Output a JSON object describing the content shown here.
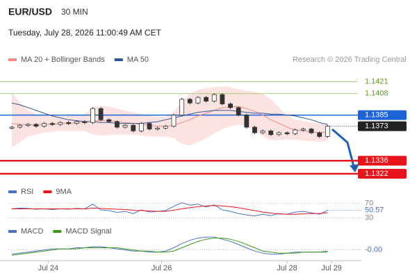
{
  "header": {
    "symbol": "EUR/USD",
    "interval": "30 MIN",
    "timestamp": "Tuesday, July 28, 2026 11:00:49 AM CET",
    "credit": "Research © 2026 Trading Central"
  },
  "chart_data": [
    {
      "type": "candlestick",
      "up_color": "#ffffff",
      "down_color": "#333333",
      "ylim": [
        1.1313,
        1.1428
      ],
      "close": [
        1.1372,
        1.1374,
        1.1375,
        1.1373,
        1.1376,
        1.1375,
        1.1377,
        1.1376,
        1.1378,
        1.1377,
        1.1392,
        1.138,
        1.1378,
        1.1372,
        1.1374,
        1.1368,
        1.1376,
        1.137,
        1.1371,
        1.1373,
        1.1385,
        1.1402,
        1.1398,
        1.1404,
        1.14,
        1.1407,
        1.1397,
        1.1393,
        1.1385,
        1.1372,
        1.1366,
        1.1368,
        1.1364,
        1.1366,
        1.1365,
        1.1369,
        1.137,
        1.1366,
        1.1362,
        1.1373
      ],
      "series": [
        {
          "name": "MA 20 + Bollinger Bands",
          "color": "#f28b82",
          "band_color": "#fde2e2",
          "values": [
            1.1376,
            1.1375,
            1.1375,
            1.1374,
            1.1375,
            1.1375,
            1.1376,
            1.1376,
            1.1377,
            1.1377,
            1.1379,
            1.1379,
            1.1379,
            1.1378,
            1.1377,
            1.1376,
            1.1375,
            1.1374,
            1.1373,
            1.1373,
            1.1374,
            1.1377,
            1.138,
            1.1384,
            1.1387,
            1.139,
            1.1393,
            1.1394,
            1.1394,
            1.1392,
            1.1389,
            1.1385,
            1.138,
            1.1376,
            1.1372,
            1.1369,
            1.1368,
            1.1367,
            1.1366,
            1.1367
          ],
          "upper": [
            1.141,
            1.1398,
            1.139,
            1.1386,
            1.1385,
            1.1384,
            1.1384,
            1.1384,
            1.1385,
            1.1386,
            1.1394,
            1.1395,
            1.1394,
            1.1392,
            1.139,
            1.1388,
            1.1386,
            1.1384,
            1.1383,
            1.1383,
            1.1388,
            1.14,
            1.1408,
            1.1412,
            1.1414,
            1.1415,
            1.1416,
            1.1415,
            1.1413,
            1.1411,
            1.141,
            1.1408,
            1.1402,
            1.1393,
            1.1385,
            1.138,
            1.1378,
            1.1377,
            1.1376,
            1.1376
          ],
          "lower": [
            1.135,
            1.1356,
            1.1362,
            1.1364,
            1.1366,
            1.1367,
            1.1368,
            1.1368,
            1.1368,
            1.1368,
            1.1364,
            1.1363,
            1.1364,
            1.1364,
            1.1364,
            1.1364,
            1.1363,
            1.1362,
            1.1362,
            1.1362,
            1.136,
            1.1354,
            1.1352,
            1.1356,
            1.136,
            1.1365,
            1.137,
            1.1373,
            1.1375,
            1.1373,
            1.1368,
            1.1362,
            1.1358,
            1.1358,
            1.1359,
            1.1358,
            1.1358,
            1.1357,
            1.1356,
            1.1357
          ]
        },
        {
          "name": "MA 50",
          "color": "#2f5597",
          "values": [
            1.1398,
            1.1396,
            1.1393,
            1.139,
            1.1387,
            1.1384,
            1.1382,
            1.138,
            1.1379,
            1.1378,
            1.1378,
            1.1377,
            1.1377,
            1.1376,
            1.1376,
            1.1376,
            1.1376,
            1.1377,
            1.1378,
            1.138,
            1.1382,
            1.1384,
            1.1386,
            1.1388,
            1.1389,
            1.139,
            1.139,
            1.139,
            1.1389,
            1.1388,
            1.1387,
            1.1387,
            1.1386,
            1.1386,
            1.1385,
            1.1384,
            1.1382,
            1.138,
            1.1377,
            1.1375
          ]
        }
      ],
      "levels": [
        {
          "value": 1.1421,
          "color": "#8bc34a",
          "boxed": false
        },
        {
          "value": 1.1408,
          "color": "#8bc34a",
          "boxed": false
        },
        {
          "value": 1.1385,
          "color": "#1e63d6",
          "boxed": true
        },
        {
          "value": 1.1336,
          "color": "#e8141c",
          "boxed": true
        },
        {
          "value": 1.1322,
          "color": "#e8141c",
          "boxed": true
        }
      ],
      "xticks": [
        {
          "value": 4.5,
          "label": "Jul 24"
        },
        {
          "value": 18.5,
          "label": "Jul 26"
        },
        {
          "value": 34,
          "label": "Jul 28"
        },
        {
          "value": 39.5,
          "label": "Jul 29"
        }
      ]
    },
    {
      "type": "line",
      "ylim": [
        21,
        83
      ],
      "yticks": [
        30,
        70
      ],
      "series": [
        {
          "name": "RSI",
          "color": "#4a72c4",
          "values": [
            55,
            57,
            56,
            54,
            55,
            53,
            55,
            54,
            56,
            55,
            68,
            52,
            50,
            45,
            48,
            42,
            52,
            46,
            48,
            50,
            62,
            72,
            65,
            68,
            60,
            66,
            52,
            48,
            42,
            38,
            35,
            40,
            36,
            42,
            40,
            46,
            48,
            44,
            40,
            50.57
          ]
        },
        {
          "name": "9MA",
          "color": "#e8141c",
          "values": [
            55,
            55,
            55,
            55,
            55,
            55,
            55,
            55,
            55,
            55,
            57,
            56,
            55,
            54,
            53,
            51,
            50,
            49,
            48,
            48,
            51,
            55,
            58,
            61,
            63,
            64,
            63,
            61,
            58,
            54,
            50,
            46,
            43,
            41,
            40,
            40,
            41,
            42,
            42,
            44
          ]
        }
      ]
    },
    {
      "type": "line",
      "ylim": [
        -0.0008,
        0.0014
      ],
      "yticks": [
        {
          "value": 0,
          "label": "-0.00"
        }
      ],
      "series": [
        {
          "name": "MACD",
          "color": "#4a72c4",
          "values": [
            -0.0004,
            -0.0003,
            -0.0002,
            -0.0001,
            0,
            0.0001,
            0.0001,
            0.0001,
            0.0002,
            0.0002,
            0.0003,
            0.0003,
            0.0002,
            0.0001,
            0,
            -0.0001,
            -0.0001,
            -0.0002,
            -0.0002,
            -0.0001,
            0.0002,
            0.0006,
            0.0009,
            0.0011,
            0.0012,
            0.0012,
            0.001,
            0.0008,
            0.0005,
            0.0002,
            -0.0001,
            -0.0003,
            -0.0004,
            -0.0004,
            -0.0003,
            -0.0002,
            -0.0002,
            -0.0002,
            -0.0002,
            -0.0001
          ]
        },
        {
          "name": "MACD Signal",
          "color": "#3a9a1a",
          "values": [
            -0.0005,
            -0.0004,
            -0.0003,
            -0.0002,
            -0.0001,
            0,
            0.0001,
            0.0001,
            0.0001,
            0.0002,
            0.0002,
            0.0002,
            0.0002,
            0.0002,
            0.0001,
            0,
            -0.0001,
            -0.0001,
            -0.0002,
            -0.0002,
            -0.0001,
            0.0002,
            0.0005,
            0.0008,
            0.001,
            0.0011,
            0.0011,
            0.001,
            0.0008,
            0.0005,
            0.0002,
            -0.0001,
            -0.0002,
            -0.0003,
            -0.0003,
            -0.0003,
            -0.0002,
            -0.0002,
            -0.0002,
            -0.0002
          ]
        }
      ]
    }
  ]
}
